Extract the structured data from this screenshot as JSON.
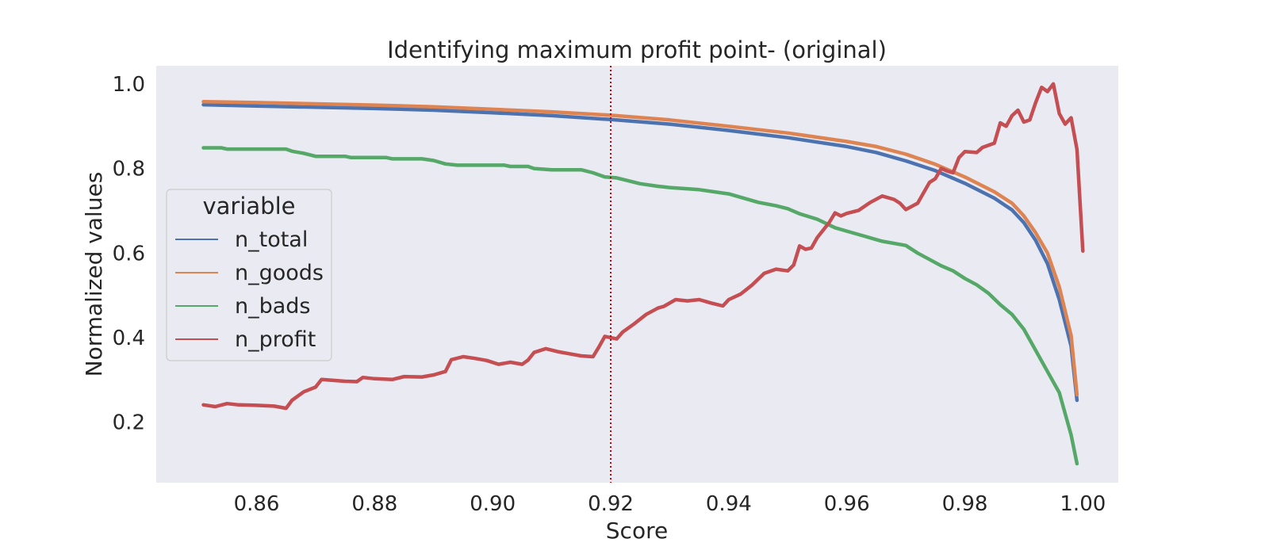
{
  "chart_data": {
    "type": "line",
    "title": "Identifying maximum profit point- (original)",
    "xlabel": "Score",
    "ylabel": "Normalized values",
    "xlim": [
      0.843,
      1.006
    ],
    "ylim": [
      0.057,
      1.043
    ],
    "grid": false,
    "background": "#EAEAF2",
    "x_ticks": [
      0.86,
      0.88,
      0.9,
      0.92,
      0.94,
      0.96,
      0.98,
      1.0
    ],
    "x_tick_labels": [
      "0.86",
      "0.88",
      "0.90",
      "0.92",
      "0.94",
      "0.96",
      "0.98",
      "1.00"
    ],
    "y_ticks": [
      0.2,
      0.4,
      0.6,
      0.8,
      1.0
    ],
    "y_tick_labels": [
      "0.2",
      "0.4",
      "0.6",
      "0.8",
      "1.0"
    ],
    "legend": {
      "title": "variable",
      "placement": "center-left"
    },
    "vline": {
      "x": 0.92,
      "color": "#CC0000",
      "style": "dotted"
    },
    "series": [
      {
        "name": "n_total",
        "color": "#4C72B0",
        "points": [
          [
            0.851,
            0.951
          ],
          [
            0.86,
            0.948
          ],
          [
            0.87,
            0.945
          ],
          [
            0.88,
            0.942
          ],
          [
            0.89,
            0.938
          ],
          [
            0.9,
            0.932
          ],
          [
            0.91,
            0.925
          ],
          [
            0.92,
            0.916
          ],
          [
            0.93,
            0.905
          ],
          [
            0.94,
            0.89
          ],
          [
            0.95,
            0.873
          ],
          [
            0.96,
            0.852
          ],
          [
            0.965,
            0.838
          ],
          [
            0.97,
            0.818
          ],
          [
            0.975,
            0.795
          ],
          [
            0.98,
            0.765
          ],
          [
            0.985,
            0.73
          ],
          [
            0.988,
            0.702
          ],
          [
            0.99,
            0.672
          ],
          [
            0.992,
            0.63
          ],
          [
            0.994,
            0.575
          ],
          [
            0.996,
            0.49
          ],
          [
            0.998,
            0.38
          ],
          [
            0.999,
            0.252
          ]
        ]
      },
      {
        "name": "n_goods",
        "color": "#DD8452",
        "points": [
          [
            0.851,
            0.958
          ],
          [
            0.86,
            0.956
          ],
          [
            0.87,
            0.953
          ],
          [
            0.88,
            0.95
          ],
          [
            0.89,
            0.946
          ],
          [
            0.9,
            0.94
          ],
          [
            0.91,
            0.934
          ],
          [
            0.92,
            0.926
          ],
          [
            0.93,
            0.915
          ],
          [
            0.94,
            0.9
          ],
          [
            0.95,
            0.884
          ],
          [
            0.96,
            0.864
          ],
          [
            0.965,
            0.852
          ],
          [
            0.97,
            0.834
          ],
          [
            0.975,
            0.81
          ],
          [
            0.98,
            0.78
          ],
          [
            0.985,
            0.745
          ],
          [
            0.988,
            0.718
          ],
          [
            0.99,
            0.688
          ],
          [
            0.992,
            0.648
          ],
          [
            0.994,
            0.6
          ],
          [
            0.996,
            0.52
          ],
          [
            0.998,
            0.405
          ],
          [
            0.999,
            0.265
          ]
        ]
      },
      {
        "name": "n_bads",
        "color": "#55A868",
        "points": [
          [
            0.851,
            0.849
          ],
          [
            0.854,
            0.849
          ],
          [
            0.855,
            0.846
          ],
          [
            0.865,
            0.846
          ],
          [
            0.866,
            0.841
          ],
          [
            0.868,
            0.836
          ],
          [
            0.87,
            0.829
          ],
          [
            0.875,
            0.829
          ],
          [
            0.876,
            0.826
          ],
          [
            0.882,
            0.826
          ],
          [
            0.883,
            0.823
          ],
          [
            0.888,
            0.823
          ],
          [
            0.89,
            0.819
          ],
          [
            0.892,
            0.811
          ],
          [
            0.894,
            0.808
          ],
          [
            0.902,
            0.808
          ],
          [
            0.903,
            0.805
          ],
          [
            0.906,
            0.805
          ],
          [
            0.907,
            0.8
          ],
          [
            0.91,
            0.797
          ],
          [
            0.915,
            0.797
          ],
          [
            0.917,
            0.79
          ],
          [
            0.919,
            0.78
          ],
          [
            0.921,
            0.778
          ],
          [
            0.925,
            0.764
          ],
          [
            0.928,
            0.758
          ],
          [
            0.93,
            0.755
          ],
          [
            0.935,
            0.75
          ],
          [
            0.94,
            0.74
          ],
          [
            0.945,
            0.72
          ],
          [
            0.948,
            0.712
          ],
          [
            0.95,
            0.705
          ],
          [
            0.952,
            0.693
          ],
          [
            0.955,
            0.68
          ],
          [
            0.958,
            0.66
          ],
          [
            0.96,
            0.652
          ],
          [
            0.963,
            0.64
          ],
          [
            0.966,
            0.628
          ],
          [
            0.97,
            0.618
          ],
          [
            0.972,
            0.6
          ],
          [
            0.974,
            0.585
          ],
          [
            0.976,
            0.57
          ],
          [
            0.978,
            0.558
          ],
          [
            0.98,
            0.54
          ],
          [
            0.982,
            0.525
          ],
          [
            0.984,
            0.505
          ],
          [
            0.986,
            0.478
          ],
          [
            0.988,
            0.455
          ],
          [
            0.99,
            0.42
          ],
          [
            0.992,
            0.37
          ],
          [
            0.994,
            0.32
          ],
          [
            0.996,
            0.27
          ],
          [
            0.998,
            0.17
          ],
          [
            0.999,
            0.102
          ]
        ]
      },
      {
        "name": "n_profit",
        "color": "#C44E52",
        "points": [
          [
            0.851,
            0.241
          ],
          [
            0.853,
            0.237
          ],
          [
            0.855,
            0.244
          ],
          [
            0.857,
            0.241
          ],
          [
            0.86,
            0.24
          ],
          [
            0.863,
            0.238
          ],
          [
            0.865,
            0.233
          ],
          [
            0.866,
            0.252
          ],
          [
            0.868,
            0.272
          ],
          [
            0.87,
            0.283
          ],
          [
            0.871,
            0.301
          ],
          [
            0.873,
            0.299
          ],
          [
            0.875,
            0.297
          ],
          [
            0.877,
            0.296
          ],
          [
            0.878,
            0.306
          ],
          [
            0.88,
            0.303
          ],
          [
            0.883,
            0.301
          ],
          [
            0.885,
            0.308
          ],
          [
            0.888,
            0.307
          ],
          [
            0.89,
            0.312
          ],
          [
            0.892,
            0.32
          ],
          [
            0.893,
            0.348
          ],
          [
            0.895,
            0.355
          ],
          [
            0.897,
            0.351
          ],
          [
            0.899,
            0.346
          ],
          [
            0.901,
            0.337
          ],
          [
            0.903,
            0.342
          ],
          [
            0.905,
            0.337
          ],
          [
            0.906,
            0.347
          ],
          [
            0.907,
            0.365
          ],
          [
            0.909,
            0.374
          ],
          [
            0.911,
            0.367
          ],
          [
            0.913,
            0.362
          ],
          [
            0.915,
            0.357
          ],
          [
            0.917,
            0.355
          ],
          [
            0.918,
            0.378
          ],
          [
            0.919,
            0.403
          ],
          [
            0.921,
            0.397
          ],
          [
            0.922,
            0.413
          ],
          [
            0.924,
            0.433
          ],
          [
            0.926,
            0.455
          ],
          [
            0.928,
            0.47
          ],
          [
            0.929,
            0.474
          ],
          [
            0.931,
            0.49
          ],
          [
            0.933,
            0.487
          ],
          [
            0.935,
            0.49
          ],
          [
            0.937,
            0.482
          ],
          [
            0.939,
            0.475
          ],
          [
            0.94,
            0.49
          ],
          [
            0.942,
            0.503
          ],
          [
            0.944,
            0.525
          ],
          [
            0.946,
            0.552
          ],
          [
            0.948,
            0.562
          ],
          [
            0.95,
            0.558
          ],
          [
            0.951,
            0.572
          ],
          [
            0.952,
            0.617
          ],
          [
            0.953,
            0.609
          ],
          [
            0.954,
            0.612
          ],
          [
            0.955,
            0.637
          ],
          [
            0.957,
            0.672
          ],
          [
            0.958,
            0.695
          ],
          [
            0.959,
            0.688
          ],
          [
            0.96,
            0.694
          ],
          [
            0.962,
            0.701
          ],
          [
            0.964,
            0.72
          ],
          [
            0.966,
            0.735
          ],
          [
            0.968,
            0.727
          ],
          [
            0.969,
            0.718
          ],
          [
            0.97,
            0.703
          ],
          [
            0.972,
            0.718
          ],
          [
            0.974,
            0.767
          ],
          [
            0.975,
            0.776
          ],
          [
            0.976,
            0.8
          ],
          [
            0.977,
            0.794
          ],
          [
            0.978,
            0.79
          ],
          [
            0.979,
            0.826
          ],
          [
            0.98,
            0.84
          ],
          [
            0.982,
            0.838
          ],
          [
            0.983,
            0.85
          ],
          [
            0.985,
            0.86
          ],
          [
            0.986,
            0.908
          ],
          [
            0.987,
            0.9
          ],
          [
            0.988,
            0.925
          ],
          [
            0.989,
            0.938
          ],
          [
            0.99,
            0.91
          ],
          [
            0.991,
            0.915
          ],
          [
            0.992,
            0.956
          ],
          [
            0.993,
            0.992
          ],
          [
            0.994,
            0.982
          ],
          [
            0.995,
            1.0
          ],
          [
            0.996,
            0.93
          ],
          [
            0.997,
            0.905
          ],
          [
            0.998,
            0.92
          ],
          [
            0.999,
            0.845
          ],
          [
            1.0,
            0.605
          ]
        ]
      }
    ]
  }
}
